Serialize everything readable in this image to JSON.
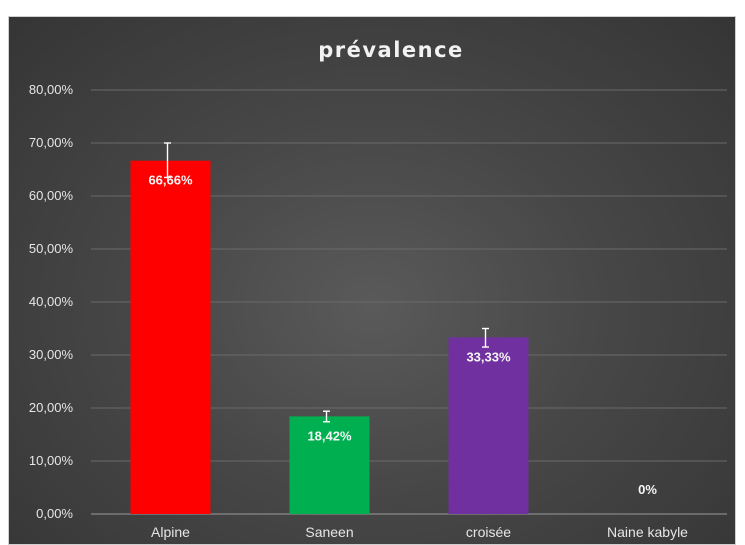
{
  "chart_data": {
    "type": "bar",
    "title": "prévalence",
    "xlabel": "",
    "ylabel": "",
    "categories": [
      "Alpine",
      "Saneen",
      "croisée",
      "Naine kabyle"
    ],
    "values": [
      66.66,
      18.42,
      33.33,
      0
    ],
    "value_labels": [
      "66,66%",
      "18,42%",
      "33,33%",
      "0%"
    ],
    "error_high": [
      70.0,
      19.4,
      35.0,
      0
    ],
    "error_low": [
      63.5,
      17.4,
      31.5,
      0
    ],
    "ylim": [
      0,
      80
    ],
    "y_ticks": [
      0,
      10,
      20,
      30,
      40,
      50,
      60,
      70,
      80
    ],
    "y_tick_labels": [
      "0,00%",
      "10,00%",
      "20,00%",
      "30,00%",
      "40,00%",
      "50,00%",
      "60,00%",
      "70,00%",
      "80,00%"
    ],
    "grid": true,
    "legend": "none",
    "colors": [
      "#ff0000",
      "#00b050",
      "#7030a0",
      "#7030a0"
    ],
    "background": "#474747"
  }
}
